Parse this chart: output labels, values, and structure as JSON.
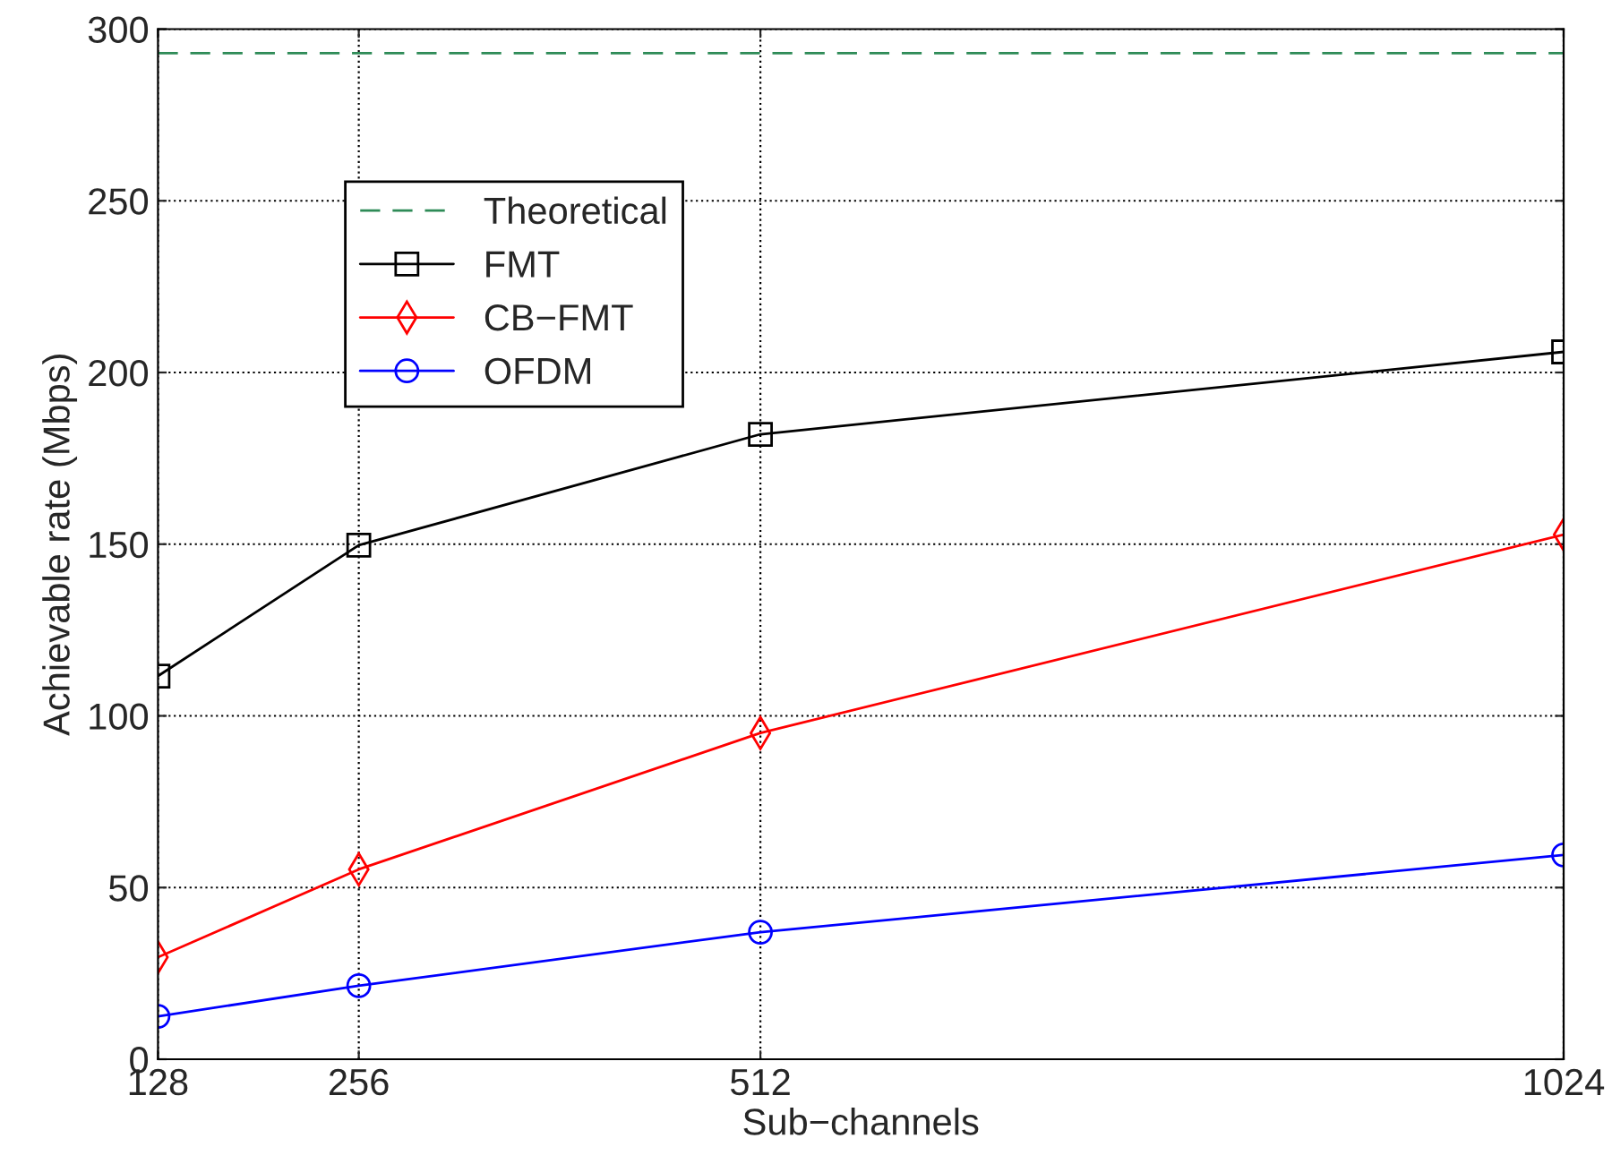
{
  "chart_data": {
    "type": "line",
    "xlabel": "Sub−channels",
    "ylabel": "Achievable rate (Mbps)",
    "x": [
      128,
      256,
      512,
      1024
    ],
    "series": [
      {
        "name": "Theoretical",
        "color": "#2e8b57",
        "x": [
          128,
          1024
        ],
        "values": [
          293,
          293
        ],
        "line_style": "dashed",
        "marker": "none"
      },
      {
        "name": "FMT",
        "color": "#000000",
        "values": [
          111.6,
          149.7,
          182,
          206
        ],
        "marker": "square",
        "line_style": "solid"
      },
      {
        "name": "CB−FMT",
        "color": "#ff0000",
        "values": [
          29.7,
          55.3,
          95,
          152.8
        ],
        "marker": "diamond",
        "line_style": "solid"
      },
      {
        "name": "OFDM",
        "color": "#0000ff",
        "values": [
          12.5,
          21.4,
          37,
          59.5
        ],
        "marker": "circle",
        "line_style": "solid"
      }
    ],
    "xlim": [
      128,
      1024
    ],
    "xticks": [
      128,
      256,
      512,
      1024
    ],
    "ylim": [
      0,
      300
    ],
    "yticks": [
      0,
      50,
      100,
      150,
      200,
      250,
      300
    ],
    "grid": true,
    "legend": "top left"
  }
}
